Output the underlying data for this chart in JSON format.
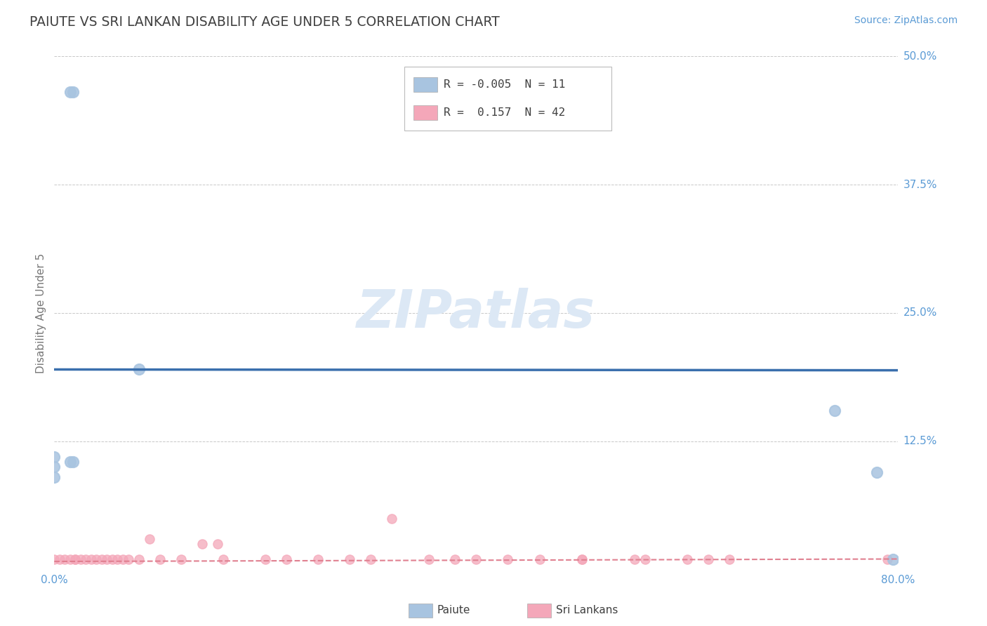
{
  "title": "PAIUTE VS SRI LANKAN DISABILITY AGE UNDER 5 CORRELATION CHART",
  "source": "Source: ZipAtlas.com",
  "ylabel": "Disability Age Under 5",
  "xlim": [
    0.0,
    0.8
  ],
  "ylim": [
    0.0,
    0.5
  ],
  "paiute_R": "-0.005",
  "paiute_N": "11",
  "srilankan_R": "0.157",
  "srilankan_N": "42",
  "paiute_color": "#a8c4e0",
  "srilankan_color": "#f4a7b9",
  "paiute_line_color": "#3a6fad",
  "srilankan_line_color": "#e08090",
  "background_color": "#ffffff",
  "grid_color": "#c8c8c8",
  "watermark_color": "#dce8f5",
  "title_color": "#404040",
  "source_color": "#5b9bd5",
  "axis_label_color": "#777777",
  "tick_color": "#5b9bd5",
  "legend_text_color": "#404040",
  "legend_R_color": "#5b9bd5",
  "paiute_x": [
    0.015,
    0.018,
    0.015,
    0.018,
    0.0,
    0.0,
    0.0,
    0.08,
    0.74,
    0.78,
    0.795
  ],
  "paiute_y": [
    0.465,
    0.465,
    0.105,
    0.105,
    0.1,
    0.11,
    0.09,
    0.195,
    0.155,
    0.095,
    0.01
  ],
  "srilankan_x": [
    0.0,
    0.005,
    0.01,
    0.015,
    0.02,
    0.02,
    0.025,
    0.03,
    0.035,
    0.04,
    0.045,
    0.05,
    0.055,
    0.06,
    0.065,
    0.07,
    0.08,
    0.09,
    0.1,
    0.12,
    0.14,
    0.155,
    0.16,
    0.2,
    0.22,
    0.25,
    0.28,
    0.3,
    0.32,
    0.355,
    0.38,
    0.4,
    0.43,
    0.46,
    0.5,
    0.5,
    0.55,
    0.56,
    0.6,
    0.62,
    0.64,
    0.79
  ],
  "srilankan_y": [
    0.01,
    0.01,
    0.01,
    0.01,
    0.01,
    0.01,
    0.01,
    0.01,
    0.01,
    0.01,
    0.01,
    0.01,
    0.01,
    0.01,
    0.01,
    0.01,
    0.01,
    0.03,
    0.01,
    0.01,
    0.025,
    0.025,
    0.01,
    0.01,
    0.01,
    0.01,
    0.01,
    0.01,
    0.05,
    0.01,
    0.01,
    0.01,
    0.01,
    0.01,
    0.01,
    0.01,
    0.01,
    0.01,
    0.01,
    0.01,
    0.01,
    0.01
  ],
  "paiute_line_y_intercept": 0.195,
  "paiute_line_slope": -0.001,
  "srilankan_line_y_intercept": 0.008,
  "srilankan_line_slope": 0.003
}
